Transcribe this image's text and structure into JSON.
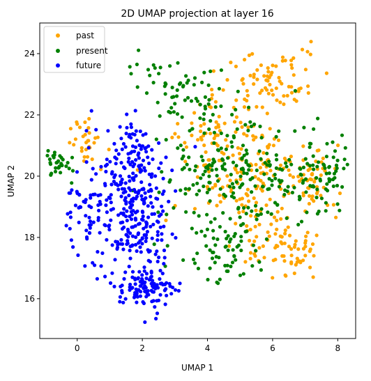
{
  "chart_data": {
    "type": "scatter",
    "title": "2D UMAP projection at layer 16",
    "xlabel": "UMAP 1",
    "ylabel": "UMAP 2",
    "xlim": [
      -1.15,
      8.55
    ],
    "ylim": [
      14.7,
      25.0
    ],
    "xticks": [
      0,
      2,
      4,
      6,
      8
    ],
    "yticks": [
      16,
      18,
      20,
      22,
      24
    ],
    "grid": false,
    "legend_position": "top-left",
    "seed": 16,
    "series": [
      {
        "name": "past",
        "color": "#ffa500",
        "count": 430,
        "regions": [
          {
            "w": 0.35,
            "cx": 5.2,
            "cy": 20.0,
            "sx": 1.5,
            "sy": 1.7
          },
          {
            "w": 0.2,
            "cx": 6.0,
            "cy": 23.2,
            "sx": 1.0,
            "sy": 0.8
          },
          {
            "w": 0.15,
            "cx": 6.3,
            "cy": 17.6,
            "sx": 0.9,
            "sy": 0.7
          },
          {
            "w": 0.12,
            "cx": 7.3,
            "cy": 19.8,
            "sx": 0.7,
            "sy": 0.9
          },
          {
            "w": 0.1,
            "cx": 4.2,
            "cy": 21.5,
            "sx": 0.9,
            "sy": 1.0
          },
          {
            "w": 0.08,
            "cx": 0.2,
            "cy": 21.2,
            "sx": 0.5,
            "sy": 0.6
          }
        ],
        "bounds": {
          "x": [
            -0.7,
            8.2
          ],
          "y": [
            16.4,
            24.6
          ]
        }
      },
      {
        "name": "present",
        "color": "#008000",
        "count": 440,
        "regions": [
          {
            "w": 0.4,
            "cx": 4.6,
            "cy": 20.2,
            "sx": 1.6,
            "sy": 1.8
          },
          {
            "w": 0.15,
            "cx": 6.6,
            "cy": 19.8,
            "sx": 1.2,
            "sy": 1.2
          },
          {
            "w": 0.12,
            "cx": 3.6,
            "cy": 22.7,
            "sx": 1.0,
            "sy": 0.8
          },
          {
            "w": 0.12,
            "cx": 4.4,
            "cy": 17.4,
            "sx": 1.0,
            "sy": 0.8
          },
          {
            "w": 0.1,
            "cx": 7.7,
            "cy": 20.0,
            "sx": 0.5,
            "sy": 0.8
          },
          {
            "w": 0.06,
            "cx": -0.6,
            "cy": 20.4,
            "sx": 0.35,
            "sy": 0.4
          },
          {
            "w": 0.05,
            "cx": 2.3,
            "cy": 23.4,
            "sx": 0.6,
            "sy": 0.5
          }
        ],
        "bounds": {
          "x": [
            -1.0,
            8.4
          ],
          "y": [
            15.4,
            24.3
          ]
        }
      },
      {
        "name": "future",
        "color": "#0000ff",
        "count": 470,
        "regions": [
          {
            "w": 0.55,
            "cx": 1.7,
            "cy": 18.8,
            "sx": 1.0,
            "sy": 1.6
          },
          {
            "w": 0.2,
            "cx": 2.1,
            "cy": 16.3,
            "sx": 0.8,
            "sy": 0.6
          },
          {
            "w": 0.15,
            "cx": 1.7,
            "cy": 20.8,
            "sx": 0.9,
            "sy": 1.0
          },
          {
            "w": 0.1,
            "cx": 0.2,
            "cy": 18.6,
            "sx": 0.6,
            "sy": 1.0
          }
        ],
        "bounds": {
          "x": [
            -1.0,
            3.9
          ],
          "y": [
            15.1,
            22.6
          ]
        }
      }
    ]
  }
}
